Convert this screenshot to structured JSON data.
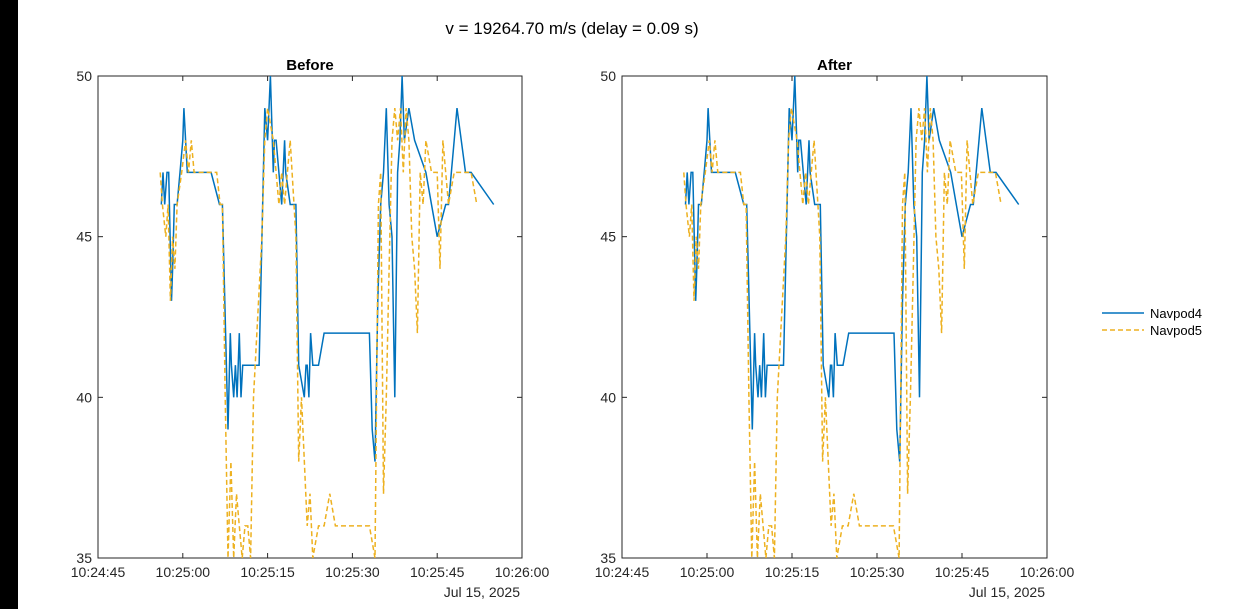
{
  "figure": {
    "title": "v = 19264.70 m/s (delay = 0.09 s)"
  },
  "legend": {
    "items": [
      {
        "name": "Navpod4",
        "color": "#0072BD",
        "style": "solid"
      },
      {
        "name": "Navpod5",
        "color": "#EDB120",
        "style": "dashed"
      }
    ]
  },
  "axes_shared": {
    "y_ticks": [
      "35",
      "40",
      "45",
      "50"
    ],
    "x_ticks": [
      "10:24:45",
      "10:25:00",
      "10:25:15",
      "10:25:30",
      "10:25:45",
      "10:26:00"
    ],
    "date_label": "Jul 15, 2025"
  },
  "chart_data": [
    {
      "type": "line",
      "title": "Before",
      "xlabel": "",
      "ylabel": "",
      "xlim": [
        "10:24:45",
        "10:26:00"
      ],
      "ylim": [
        35,
        50
      ],
      "grid": false,
      "legend_position": "right",
      "series": [
        {
          "name": "Navpod4",
          "x": [
            "10:24:56.2",
            "10:24:56.5",
            "10:24:56.8",
            "10:24:57.2",
            "10:24:57.5",
            "10:24:58.0",
            "10:24:58.2",
            "10:24:58.5",
            "10:24:59.0",
            "10:24:59.5",
            "10:25:00.0",
            "10:25:00.2",
            "10:25:00.8",
            "10:25:01.0",
            "10:25:01.5",
            "10:25:02.0",
            "10:25:05.0",
            "10:25:06.5",
            "10:25:07.0",
            "10:25:08.0",
            "10:25:08.4",
            "10:25:08.6",
            "10:25:09.0",
            "10:25:09.3",
            "10:25:09.6",
            "10:25:10.0",
            "10:25:10.3",
            "10:25:10.6",
            "10:25:11.0",
            "10:25:11.3",
            "10:25:11.5",
            "10:25:12.0",
            "10:25:13.5",
            "10:25:14.5",
            "10:25:15.0",
            "10:25:15.5",
            "10:25:16.0",
            "10:25:16.2",
            "10:25:16.5",
            "10:25:17.0",
            "10:25:17.5",
            "10:25:18.0",
            "10:25:18.2",
            "10:25:19.0",
            "10:25:20.0",
            "10:25:20.5",
            "10:25:21.5",
            "10:25:21.8",
            "10:25:22.0",
            "10:25:22.3",
            "10:25:22.6",
            "10:25:23.0",
            "10:25:23.5",
            "10:25:24.0",
            "10:25:25.0",
            "10:25:26.0",
            "10:25:33.0",
            "10:25:33.5",
            "10:25:34.0",
            "10:25:34.5",
            "10:25:35.0",
            "10:25:35.5",
            "10:25:36.0",
            "10:25:36.5",
            "10:25:37.0",
            "10:25:37.5",
            "10:25:38.0",
            "10:25:38.4",
            "10:25:38.8",
            "10:25:39.2",
            "10:25:40.0",
            "10:25:41.0",
            "10:25:43.0",
            "10:25:44.0",
            "10:25:45.0",
            "10:25:46.5",
            "10:25:47.0",
            "10:25:48.0",
            "10:25:48.5",
            "10:25:50.0",
            "10:25:51.0",
            "10:25:55.0"
          ],
          "y": [
            46,
            47,
            46,
            47,
            47,
            43,
            44,
            46,
            46,
            47,
            48,
            49,
            47,
            47,
            47,
            47,
            47,
            46,
            46,
            39,
            42,
            41,
            40,
            41,
            40,
            42,
            40,
            41,
            41,
            41,
            41,
            41,
            41,
            49,
            48,
            50,
            47,
            48,
            48,
            47,
            46,
            48,
            47,
            46,
            46,
            41,
            40,
            41,
            41,
            40,
            42,
            41,
            41,
            41,
            42,
            42,
            42,
            39,
            38,
            43,
            46,
            47,
            49,
            46,
            45,
            40,
            47,
            48,
            50,
            48,
            49,
            48,
            47,
            46,
            45,
            46,
            46,
            48,
            49,
            47,
            47,
            46
          ]
        },
        {
          "name": "Navpod5",
          "x": [
            "10:24:56.0",
            "10:24:56.4",
            "10:24:57.0",
            "10:24:57.4",
            "10:24:57.8",
            "10:24:58.2",
            "10:24:58.6",
            "10:24:59.0",
            "10:24:59.8",
            "10:25:00.5",
            "10:25:01.0",
            "10:25:01.5",
            "10:25:02.0",
            "10:25:04.0",
            "10:25:06.0",
            "10:25:06.6",
            "10:25:07.0",
            "10:25:07.5",
            "10:25:08.0",
            "10:25:08.5",
            "10:25:09.0",
            "10:25:09.5",
            "10:25:10.0",
            "10:25:10.5",
            "10:25:11.0",
            "10:25:11.5",
            "10:25:12.0",
            "10:25:12.5",
            "10:25:14.0",
            "10:25:14.5",
            "10:25:15.0",
            "10:25:16.0",
            "10:25:17.0",
            "10:25:17.5",
            "10:25:18.0",
            "10:25:19.0",
            "10:25:20.0",
            "10:25:20.5",
            "10:25:21.0",
            "10:25:22.0",
            "10:25:22.5",
            "10:25:23.0",
            "10:25:24.0",
            "10:25:25.0",
            "10:25:26.0",
            "10:25:27.0",
            "10:25:27.5",
            "10:25:28.0",
            "10:25:30.0",
            "10:25:33.0",
            "10:25:34.0",
            "10:25:34.6",
            "10:25:35.0",
            "10:25:35.5",
            "10:25:36.0",
            "10:25:36.5",
            "10:25:37.0",
            "10:25:37.5",
            "10:25:38.0",
            "10:25:38.5",
            "10:25:39.0",
            "10:25:39.5",
            "10:25:40.0",
            "10:25:40.5",
            "10:25:41.0",
            "10:25:41.5",
            "10:25:42.0",
            "10:25:42.5",
            "10:25:43.0",
            "10:25:44.0",
            "10:25:45.0",
            "10:25:45.5",
            "10:25:46.0",
            "10:25:46.5",
            "10:25:47.0",
            "10:25:48.0",
            "10:25:49.0",
            "10:25:51.0",
            "10:25:52.0"
          ],
          "y": [
            47,
            46,
            45,
            46,
            43,
            45,
            44,
            46,
            47,
            48,
            47,
            48,
            47,
            47,
            47,
            46,
            46,
            40,
            35,
            38,
            35,
            37,
            36,
            35,
            36,
            36,
            35,
            40,
            45,
            48,
            49,
            48,
            46,
            47,
            46,
            48,
            45,
            38,
            40,
            36,
            37,
            35,
            36,
            36,
            37,
            36,
            36,
            36,
            36,
            36,
            35,
            46,
            47,
            37,
            40,
            44,
            48,
            49,
            48,
            49,
            47,
            49,
            48,
            45,
            44,
            42,
            47,
            46,
            48,
            47,
            47,
            44,
            48,
            47,
            46,
            47,
            47,
            47,
            46
          ]
        }
      ]
    },
    {
      "type": "line",
      "title": "After",
      "xlabel": "",
      "ylabel": "",
      "xlim": [
        "10:24:45",
        "10:26:00"
      ],
      "ylim": [
        35,
        50
      ],
      "grid": false,
      "legend_position": "right",
      "series": [
        {
          "name": "Navpod4",
          "x": [
            "10:24:56.2",
            "10:24:56.5",
            "10:24:56.8",
            "10:24:57.2",
            "10:24:57.5",
            "10:24:58.0",
            "10:24:58.2",
            "10:24:58.5",
            "10:24:59.0",
            "10:24:59.5",
            "10:25:00.0",
            "10:25:00.2",
            "10:25:00.8",
            "10:25:01.0",
            "10:25:01.5",
            "10:25:02.0",
            "10:25:05.0",
            "10:25:06.5",
            "10:25:07.0",
            "10:25:08.0",
            "10:25:08.4",
            "10:25:08.6",
            "10:25:09.0",
            "10:25:09.3",
            "10:25:09.6",
            "10:25:10.0",
            "10:25:10.3",
            "10:25:10.6",
            "10:25:11.0",
            "10:25:11.3",
            "10:25:11.5",
            "10:25:12.0",
            "10:25:13.5",
            "10:25:14.5",
            "10:25:15.0",
            "10:25:15.5",
            "10:25:16.0",
            "10:25:16.2",
            "10:25:16.5",
            "10:25:17.0",
            "10:25:17.5",
            "10:25:18.0",
            "10:25:18.2",
            "10:25:19.0",
            "10:25:20.0",
            "10:25:20.5",
            "10:25:21.5",
            "10:25:21.8",
            "10:25:22.0",
            "10:25:22.3",
            "10:25:22.6",
            "10:25:23.0",
            "10:25:23.5",
            "10:25:24.0",
            "10:25:25.0",
            "10:25:26.0",
            "10:25:33.0",
            "10:25:33.5",
            "10:25:34.0",
            "10:25:34.5",
            "10:25:35.0",
            "10:25:35.5",
            "10:25:36.0",
            "10:25:36.5",
            "10:25:37.0",
            "10:25:37.5",
            "10:25:38.0",
            "10:25:38.4",
            "10:25:38.8",
            "10:25:39.2",
            "10:25:40.0",
            "10:25:41.0",
            "10:25:43.0",
            "10:25:44.0",
            "10:25:45.0",
            "10:25:46.5",
            "10:25:47.0",
            "10:25:48.0",
            "10:25:48.5",
            "10:25:50.0",
            "10:25:51.0",
            "10:25:55.0"
          ],
          "y": [
            46,
            47,
            46,
            47,
            47,
            43,
            44,
            46,
            46,
            47,
            48,
            49,
            47,
            47,
            47,
            47,
            47,
            46,
            46,
            39,
            42,
            41,
            40,
            41,
            40,
            42,
            40,
            41,
            41,
            41,
            41,
            41,
            41,
            49,
            48,
            50,
            47,
            48,
            48,
            47,
            46,
            48,
            47,
            46,
            46,
            41,
            40,
            41,
            41,
            40,
            42,
            41,
            41,
            41,
            42,
            42,
            42,
            39,
            38,
            43,
            46,
            47,
            49,
            46,
            45,
            40,
            47,
            48,
            50,
            48,
            49,
            48,
            47,
            46,
            45,
            46,
            46,
            48,
            49,
            47,
            47,
            46
          ]
        },
        {
          "name": "Navpod5",
          "x": [
            "10:24:55.9",
            "10:24:56.3",
            "10:24:56.9",
            "10:24:57.3",
            "10:24:57.7",
            "10:24:58.1",
            "10:24:58.5",
            "10:24:58.9",
            "10:24:59.7",
            "10:25:00.4",
            "10:25:00.9",
            "10:25:01.4",
            "10:25:01.9",
            "10:25:03.9",
            "10:25:05.9",
            "10:25:06.5",
            "10:25:06.9",
            "10:25:07.4",
            "10:25:07.9",
            "10:25:08.4",
            "10:25:08.9",
            "10:25:09.4",
            "10:25:09.9",
            "10:25:10.4",
            "10:25:10.9",
            "10:25:11.4",
            "10:25:11.9",
            "10:25:12.4",
            "10:25:13.9",
            "10:25:14.4",
            "10:25:14.9",
            "10:25:15.9",
            "10:25:16.9",
            "10:25:17.4",
            "10:25:17.9",
            "10:25:18.9",
            "10:25:19.9",
            "10:25:20.4",
            "10:25:20.9",
            "10:25:21.9",
            "10:25:22.4",
            "10:25:22.9",
            "10:25:23.9",
            "10:25:24.9",
            "10:25:25.9",
            "10:25:26.9",
            "10:25:27.4",
            "10:25:27.9",
            "10:25:29.9",
            "10:25:32.9",
            "10:25:33.9",
            "10:25:34.5",
            "10:25:34.9",
            "10:25:35.4",
            "10:25:35.9",
            "10:25:36.4",
            "10:25:36.9",
            "10:25:37.4",
            "10:25:37.9",
            "10:25:38.4",
            "10:25:38.9",
            "10:25:39.4",
            "10:25:39.9",
            "10:25:40.4",
            "10:25:40.9",
            "10:25:41.4",
            "10:25:41.9",
            "10:25:42.4",
            "10:25:42.9",
            "10:25:43.9",
            "10:25:44.9",
            "10:25:45.4",
            "10:25:45.9",
            "10:25:46.4",
            "10:25:46.9",
            "10:25:47.9",
            "10:25:48.9",
            "10:25:50.9",
            "10:25:51.9"
          ],
          "y": [
            47,
            46,
            45,
            46,
            43,
            45,
            44,
            46,
            47,
            48,
            47,
            48,
            47,
            47,
            47,
            46,
            46,
            40,
            35,
            38,
            35,
            37,
            36,
            35,
            36,
            36,
            35,
            40,
            45,
            48,
            49,
            48,
            46,
            47,
            46,
            48,
            45,
            38,
            40,
            36,
            37,
            35,
            36,
            36,
            37,
            36,
            36,
            36,
            36,
            36,
            35,
            46,
            47,
            37,
            40,
            44,
            48,
            49,
            48,
            49,
            47,
            49,
            48,
            45,
            44,
            42,
            47,
            46,
            48,
            47,
            47,
            44,
            48,
            47,
            46,
            47,
            47,
            47,
            46
          ]
        }
      ]
    }
  ]
}
